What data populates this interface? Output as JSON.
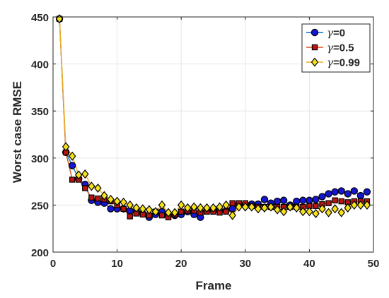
{
  "chart_data": {
    "type": "line",
    "title": "",
    "xlabel": "Frame",
    "ylabel": "Worst case RMSE",
    "xlim": [
      0,
      50
    ],
    "ylim": [
      200,
      450
    ],
    "xticks": [
      0,
      10,
      20,
      30,
      40,
      50
    ],
    "yticks": [
      200,
      250,
      300,
      350,
      400,
      450
    ],
    "grid": true,
    "legend_position": "top-right",
    "x": [
      1,
      2,
      3,
      4,
      5,
      6,
      7,
      8,
      9,
      10,
      11,
      12,
      13,
      14,
      15,
      16,
      17,
      18,
      19,
      20,
      21,
      22,
      23,
      24,
      25,
      26,
      27,
      28,
      29,
      30,
      31,
      32,
      33,
      34,
      35,
      36,
      37,
      38,
      39,
      40,
      41,
      42,
      43,
      44,
      45,
      46,
      47,
      48,
      49
    ],
    "series": [
      {
        "name": "γ=0",
        "legend_prefix": "γ",
        "legend_suffix": "=0",
        "color": "#0072BD",
        "marker": "circle",
        "marker_fill": "#1616d0",
        "values": [
          448,
          306,
          292,
          278,
          272,
          255,
          253,
          252,
          246,
          246,
          246,
          244,
          243,
          241,
          237,
          240,
          243,
          239,
          239,
          240,
          243,
          240,
          237,
          244,
          245,
          244,
          244,
          246,
          251,
          251,
          251,
          251,
          256,
          252,
          254,
          255,
          250,
          254,
          255,
          255,
          256,
          259,
          262,
          264,
          265,
          262,
          265,
          260,
          264
        ]
      },
      {
        "name": "γ=0.5",
        "legend_prefix": "γ",
        "legend_suffix": "=0.5",
        "color": "#D95319",
        "marker": "square",
        "marker_fill": "#b81414",
        "values": [
          448,
          306,
          277,
          277,
          268,
          258,
          257,
          256,
          254,
          250,
          246,
          238,
          241,
          240,
          239,
          243,
          239,
          237,
          240,
          243,
          244,
          244,
          242,
          243,
          243,
          242,
          243,
          252,
          252,
          252,
          249,
          248,
          248,
          248,
          248,
          248,
          248,
          248,
          248,
          249,
          249,
          251,
          252,
          255,
          254,
          253,
          254,
          254,
          254
        ]
      },
      {
        "name": "γ=0.99",
        "legend_prefix": "γ",
        "legend_suffix": "=0.99",
        "color": "#EDB120",
        "marker": "diamond",
        "marker_fill": "#f6e21c",
        "values": [
          448,
          312,
          302,
          282,
          283,
          270,
          268,
          260,
          256,
          254,
          253,
          250,
          247,
          246,
          245,
          243,
          250,
          242,
          242,
          250,
          247,
          248,
          247,
          247,
          247,
          248,
          250,
          239,
          248,
          248,
          248,
          246,
          247,
          248,
          245,
          243,
          248,
          247,
          243,
          243,
          241,
          246,
          242,
          246,
          242,
          247,
          250,
          250,
          250
        ]
      }
    ]
  }
}
